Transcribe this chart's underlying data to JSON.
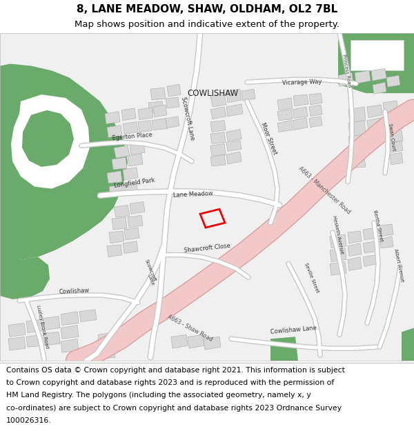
{
  "title": "8, LANE MEADOW, SHAW, OLDHAM, OL2 7BL",
  "subtitle": "Map shows position and indicative extent of the property.",
  "footer_lines": [
    "Contains OS data © Crown copyright and database right 2021. This information is subject",
    "to Crown copyright and database rights 2023 and is reproduced with the permission of",
    "HM Land Registry. The polygons (including the associated geometry, namely x, y",
    "co-ordinates) are subject to Crown copyright and database rights 2023 Ordnance Survey",
    "100026316."
  ],
  "map_bg": "#f0f0f0",
  "header_bg": "#ffffff",
  "footer_bg": "#ffffff",
  "road_major_color": "#f2c8c8",
  "road_major_outline": "#d8a0a0",
  "road_minor_color": "#ffffff",
  "road_minor_outline": "#c8c8c8",
  "building_color": "#d8d8d8",
  "building_outline": "#aaaaaa",
  "green_dark": "#6aaa6a",
  "green_light": "#b8d8b8",
  "plot_color": "#ee0000",
  "text_color": "#000000",
  "gray_label": "#444444",
  "title_fontsize": 11,
  "subtitle_fontsize": 9.5,
  "footer_fontsize": 7.8,
  "label_fontsize": 6.0,
  "label_fontsize_sm": 5.0,
  "cowlishaw_fontsize": 8.5
}
